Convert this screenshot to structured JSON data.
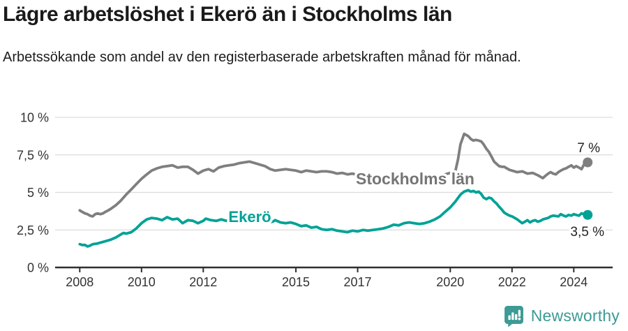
{
  "header": {
    "title": "Lägre arbetslöshet i Ekerö än i Stockholms län",
    "subtitle": "Arbetssökande som andel av den registerbaserade arbetskraften månad för månad."
  },
  "chart_data": {
    "type": "line",
    "title": "Lägre arbetslöshet i Ekerö än i Stockholms län",
    "subtitle": "Arbetssökande som andel av den registerbaserade arbetskraften månad för månad.",
    "grid": "horizontal-only",
    "legend_position": "inline-series-labels",
    "x_axis": {
      "range": [
        2007.2,
        2025.3
      ],
      "tick_years": [
        2008,
        2010,
        2012,
        2015,
        2017,
        2020,
        2022,
        2024
      ],
      "tick_labels": [
        "2008",
        "2010",
        "2012",
        "2015",
        "2017",
        "2020",
        "2022",
        "2024"
      ]
    },
    "y_axis": {
      "range": [
        0,
        10
      ],
      "tick_values": [
        0,
        2.5,
        5,
        7.5,
        10
      ],
      "tick_labels": [
        "0 %",
        "2,5 %",
        "5 %",
        "7,5 %",
        "10 %"
      ],
      "unit": "percent"
    },
    "series": [
      {
        "name": "Stockholms län",
        "color": "#7f7f7f",
        "end_label": "7 %",
        "end_value": 7.0,
        "points": [
          [
            2008.0,
            3.8
          ],
          [
            2008.08,
            3.7
          ],
          [
            2008.17,
            3.6
          ],
          [
            2008.25,
            3.55
          ],
          [
            2008.33,
            3.45
          ],
          [
            2008.42,
            3.4
          ],
          [
            2008.5,
            3.55
          ],
          [
            2008.58,
            3.6
          ],
          [
            2008.67,
            3.55
          ],
          [
            2008.75,
            3.6
          ],
          [
            2008.83,
            3.7
          ],
          [
            2008.92,
            3.8
          ],
          [
            2009.0,
            3.9
          ],
          [
            2009.17,
            4.15
          ],
          [
            2009.33,
            4.45
          ],
          [
            2009.5,
            4.85
          ],
          [
            2009.67,
            5.2
          ],
          [
            2009.83,
            5.55
          ],
          [
            2010.0,
            5.9
          ],
          [
            2010.17,
            6.2
          ],
          [
            2010.33,
            6.45
          ],
          [
            2010.5,
            6.6
          ],
          [
            2010.67,
            6.7
          ],
          [
            2010.83,
            6.75
          ],
          [
            2011.0,
            6.8
          ],
          [
            2011.17,
            6.65
          ],
          [
            2011.33,
            6.7
          ],
          [
            2011.5,
            6.7
          ],
          [
            2011.67,
            6.5
          ],
          [
            2011.83,
            6.25
          ],
          [
            2012.0,
            6.45
          ],
          [
            2012.17,
            6.55
          ],
          [
            2012.33,
            6.4
          ],
          [
            2012.5,
            6.65
          ],
          [
            2012.67,
            6.75
          ],
          [
            2012.83,
            6.8
          ],
          [
            2013.0,
            6.85
          ],
          [
            2013.17,
            6.95
          ],
          [
            2013.33,
            7.0
          ],
          [
            2013.5,
            7.05
          ],
          [
            2013.67,
            6.95
          ],
          [
            2013.83,
            6.85
          ],
          [
            2014.0,
            6.75
          ],
          [
            2014.17,
            6.55
          ],
          [
            2014.33,
            6.45
          ],
          [
            2014.5,
            6.5
          ],
          [
            2014.67,
            6.55
          ],
          [
            2014.83,
            6.5
          ],
          [
            2015.0,
            6.45
          ],
          [
            2015.17,
            6.35
          ],
          [
            2015.33,
            6.45
          ],
          [
            2015.5,
            6.4
          ],
          [
            2015.67,
            6.35
          ],
          [
            2015.83,
            6.4
          ],
          [
            2016.0,
            6.4
          ],
          [
            2016.17,
            6.35
          ],
          [
            2016.33,
            6.25
          ],
          [
            2016.5,
            6.3
          ],
          [
            2016.67,
            6.2
          ],
          [
            2016.83,
            6.25
          ],
          [
            2017.0,
            6.15
          ],
          [
            2017.25,
            6.05
          ],
          [
            2017.5,
            6.0
          ],
          [
            2017.75,
            5.95
          ],
          [
            2018.0,
            5.9
          ],
          [
            2018.25,
            5.85
          ],
          [
            2018.5,
            5.8
          ],
          [
            2018.75,
            5.85
          ],
          [
            2019.0,
            5.9
          ],
          [
            2019.25,
            5.95
          ],
          [
            2019.5,
            6.05
          ],
          [
            2019.75,
            6.15
          ],
          [
            2020.0,
            6.3
          ],
          [
            2020.17,
            6.45
          ],
          [
            2020.25,
            7.2
          ],
          [
            2020.33,
            8.2
          ],
          [
            2020.45,
            8.9
          ],
          [
            2020.58,
            8.75
          ],
          [
            2020.67,
            8.55
          ],
          [
            2020.75,
            8.45
          ],
          [
            2020.83,
            8.5
          ],
          [
            2020.92,
            8.45
          ],
          [
            2021.0,
            8.4
          ],
          [
            2021.08,
            8.2
          ],
          [
            2021.17,
            7.9
          ],
          [
            2021.25,
            7.7
          ],
          [
            2021.33,
            7.4
          ],
          [
            2021.42,
            7.05
          ],
          [
            2021.5,
            6.9
          ],
          [
            2021.58,
            6.75
          ],
          [
            2021.67,
            6.7
          ],
          [
            2021.75,
            6.7
          ],
          [
            2021.83,
            6.6
          ],
          [
            2021.92,
            6.5
          ],
          [
            2022.0,
            6.45
          ],
          [
            2022.17,
            6.35
          ],
          [
            2022.33,
            6.4
          ],
          [
            2022.5,
            6.25
          ],
          [
            2022.67,
            6.3
          ],
          [
            2022.83,
            6.15
          ],
          [
            2023.0,
            5.95
          ],
          [
            2023.08,
            6.1
          ],
          [
            2023.17,
            6.25
          ],
          [
            2023.25,
            6.35
          ],
          [
            2023.33,
            6.25
          ],
          [
            2023.42,
            6.2
          ],
          [
            2023.5,
            6.35
          ],
          [
            2023.58,
            6.45
          ],
          [
            2023.67,
            6.55
          ],
          [
            2023.75,
            6.6
          ],
          [
            2023.83,
            6.7
          ],
          [
            2023.92,
            6.8
          ],
          [
            2024.0,
            6.65
          ],
          [
            2024.08,
            6.75
          ],
          [
            2024.17,
            6.65
          ],
          [
            2024.25,
            6.55
          ],
          [
            2024.33,
            6.85
          ],
          [
            2024.45,
            7.0
          ]
        ]
      },
      {
        "name": "Ekerö",
        "color": "#00a296",
        "end_label": "3,5 %",
        "end_value": 3.5,
        "points": [
          [
            2008.0,
            1.55
          ],
          [
            2008.08,
            1.5
          ],
          [
            2008.17,
            1.5
          ],
          [
            2008.25,
            1.4
          ],
          [
            2008.33,
            1.45
          ],
          [
            2008.42,
            1.55
          ],
          [
            2008.58,
            1.6
          ],
          [
            2008.75,
            1.7
          ],
          [
            2008.92,
            1.8
          ],
          [
            2009.0,
            1.85
          ],
          [
            2009.17,
            2.0
          ],
          [
            2009.33,
            2.2
          ],
          [
            2009.42,
            2.3
          ],
          [
            2009.5,
            2.25
          ],
          [
            2009.67,
            2.35
          ],
          [
            2009.83,
            2.6
          ],
          [
            2010.0,
            2.95
          ],
          [
            2010.17,
            3.2
          ],
          [
            2010.33,
            3.3
          ],
          [
            2010.5,
            3.25
          ],
          [
            2010.67,
            3.15
          ],
          [
            2010.83,
            3.35
          ],
          [
            2011.0,
            3.2
          ],
          [
            2011.17,
            3.25
          ],
          [
            2011.33,
            2.95
          ],
          [
            2011.5,
            3.15
          ],
          [
            2011.67,
            3.1
          ],
          [
            2011.83,
            2.95
          ],
          [
            2012.0,
            3.1
          ],
          [
            2012.08,
            3.25
          ],
          [
            2012.25,
            3.15
          ],
          [
            2012.42,
            3.1
          ],
          [
            2012.58,
            3.2
          ],
          [
            2012.75,
            3.1
          ],
          [
            2012.92,
            3.3
          ],
          [
            2013.08,
            3.2
          ],
          [
            2013.25,
            2.95
          ],
          [
            2013.42,
            3.05
          ],
          [
            2013.58,
            3.15
          ],
          [
            2013.75,
            3.05
          ],
          [
            2013.92,
            3.15
          ],
          [
            2014.08,
            3.0
          ],
          [
            2014.25,
            3.05
          ],
          [
            2014.33,
            3.15
          ],
          [
            2014.5,
            3.0
          ],
          [
            2014.67,
            2.95
          ],
          [
            2014.83,
            3.0
          ],
          [
            2015.0,
            2.9
          ],
          [
            2015.17,
            2.75
          ],
          [
            2015.33,
            2.8
          ],
          [
            2015.5,
            2.65
          ],
          [
            2015.67,
            2.7
          ],
          [
            2015.83,
            2.55
          ],
          [
            2016.0,
            2.5
          ],
          [
            2016.17,
            2.55
          ],
          [
            2016.33,
            2.45
          ],
          [
            2016.5,
            2.4
          ],
          [
            2016.67,
            2.35
          ],
          [
            2016.83,
            2.45
          ],
          [
            2017.0,
            2.4
          ],
          [
            2017.17,
            2.5
          ],
          [
            2017.33,
            2.45
          ],
          [
            2017.5,
            2.5
          ],
          [
            2017.67,
            2.55
          ],
          [
            2017.83,
            2.6
          ],
          [
            2018.0,
            2.7
          ],
          [
            2018.17,
            2.85
          ],
          [
            2018.33,
            2.8
          ],
          [
            2018.5,
            2.95
          ],
          [
            2018.67,
            3.0
          ],
          [
            2018.83,
            2.95
          ],
          [
            2019.0,
            2.9
          ],
          [
            2019.17,
            2.95
          ],
          [
            2019.33,
            3.05
          ],
          [
            2019.5,
            3.2
          ],
          [
            2019.67,
            3.4
          ],
          [
            2019.83,
            3.7
          ],
          [
            2020.0,
            4.0
          ],
          [
            2020.17,
            4.4
          ],
          [
            2020.33,
            4.85
          ],
          [
            2020.45,
            5.05
          ],
          [
            2020.58,
            5.15
          ],
          [
            2020.67,
            5.05
          ],
          [
            2020.75,
            5.1
          ],
          [
            2020.83,
            5.0
          ],
          [
            2020.92,
            5.05
          ],
          [
            2021.0,
            4.9
          ],
          [
            2021.08,
            4.65
          ],
          [
            2021.17,
            4.55
          ],
          [
            2021.25,
            4.65
          ],
          [
            2021.33,
            4.6
          ],
          [
            2021.42,
            4.4
          ],
          [
            2021.5,
            4.25
          ],
          [
            2021.58,
            4.05
          ],
          [
            2021.67,
            3.85
          ],
          [
            2021.75,
            3.65
          ],
          [
            2021.83,
            3.55
          ],
          [
            2021.92,
            3.45
          ],
          [
            2022.0,
            3.4
          ],
          [
            2022.17,
            3.2
          ],
          [
            2022.33,
            2.95
          ],
          [
            2022.42,
            3.05
          ],
          [
            2022.5,
            3.15
          ],
          [
            2022.58,
            3.0
          ],
          [
            2022.67,
            3.1
          ],
          [
            2022.75,
            3.15
          ],
          [
            2022.83,
            3.05
          ],
          [
            2022.92,
            3.1
          ],
          [
            2023.0,
            3.2
          ],
          [
            2023.17,
            3.3
          ],
          [
            2023.25,
            3.4
          ],
          [
            2023.33,
            3.45
          ],
          [
            2023.5,
            3.4
          ],
          [
            2023.58,
            3.55
          ],
          [
            2023.67,
            3.45
          ],
          [
            2023.75,
            3.4
          ],
          [
            2023.83,
            3.5
          ],
          [
            2023.92,
            3.45
          ],
          [
            2024.0,
            3.55
          ],
          [
            2024.08,
            3.5
          ],
          [
            2024.17,
            3.45
          ],
          [
            2024.25,
            3.6
          ],
          [
            2024.33,
            3.55
          ],
          [
            2024.45,
            3.5
          ]
        ]
      }
    ]
  },
  "footer": {
    "brand": "Newsworthy",
    "logo_icon": "bar-chart-speech-bubble-icon"
  },
  "colors": {
    "stockholm_line": "#7f7f7f",
    "ekero_line": "#00a296",
    "gridline": "#dcdcdc",
    "axis_line": "#2f2f2f",
    "axis_text": "#333333",
    "series_label_gray": "#757575",
    "end_label_text": "#222222",
    "brand_teal": "#3d9a94"
  }
}
